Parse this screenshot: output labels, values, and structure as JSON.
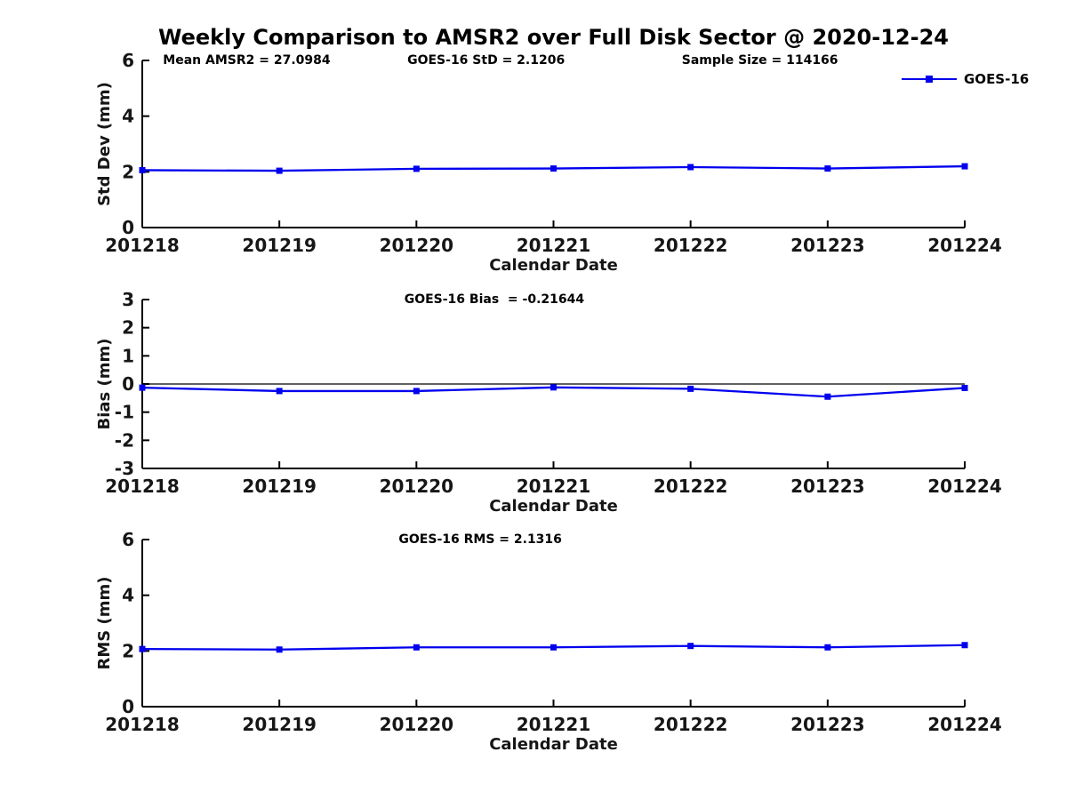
{
  "figure": {
    "title": "Weekly Comparison to AMSR2 over Full Disk Sector @ 2020-12-24",
    "legend": {
      "label": "GOES-16"
    },
    "colors": {
      "background": "#ffffff",
      "line": "#0000ee",
      "axis": "#000000",
      "tick_text": "#161616",
      "zero_line": "#000000"
    }
  },
  "chart_data": [
    {
      "type": "line",
      "name": "std-dev",
      "annotations": [
        "Mean AMSR2 = 27.0984",
        "GOES-16 StD = 2.1206",
        "Sample Size = 114166"
      ],
      "categories": [
        "201218",
        "201219",
        "201220",
        "201221",
        "201222",
        "201223",
        "201224"
      ],
      "series": [
        {
          "name": "GOES-16",
          "values": [
            2.06,
            2.04,
            2.11,
            2.12,
            2.17,
            2.12,
            2.2
          ]
        }
      ],
      "xlabel": "Calendar Date",
      "ylabel": "Std Dev (mm)",
      "ylim": [
        0,
        6
      ],
      "yticks": [
        0,
        2,
        4,
        6
      ],
      "zero_line": false,
      "grid": false,
      "legend_position": "top-right"
    },
    {
      "type": "line",
      "name": "bias",
      "annotations": [
        "GOES-16 Bias  = -0.21644"
      ],
      "categories": [
        "201218",
        "201219",
        "201220",
        "201221",
        "201222",
        "201223",
        "201224"
      ],
      "series": [
        {
          "name": "GOES-16",
          "values": [
            -0.13,
            -0.25,
            -0.25,
            -0.12,
            -0.17,
            -0.45,
            -0.14
          ]
        }
      ],
      "xlabel": "Calendar Date",
      "ylabel": "Bias (mm)",
      "ylim": [
        -3,
        3
      ],
      "yticks": [
        3,
        2,
        1,
        0,
        -1,
        -2,
        -3
      ],
      "zero_line": true,
      "grid": false
    },
    {
      "type": "line",
      "name": "rms",
      "annotations": [
        "GOES-16 RMS = 2.1316"
      ],
      "categories": [
        "201218",
        "201219",
        "201220",
        "201221",
        "201222",
        "201223",
        "201224"
      ],
      "series": [
        {
          "name": "GOES-16",
          "values": [
            2.07,
            2.05,
            2.13,
            2.13,
            2.18,
            2.13,
            2.21
          ]
        }
      ],
      "xlabel": "Calendar Date",
      "ylabel": "RMS (mm)",
      "ylim": [
        0,
        6
      ],
      "yticks": [
        0,
        2,
        4,
        6
      ],
      "zero_line": false,
      "grid": false
    }
  ]
}
